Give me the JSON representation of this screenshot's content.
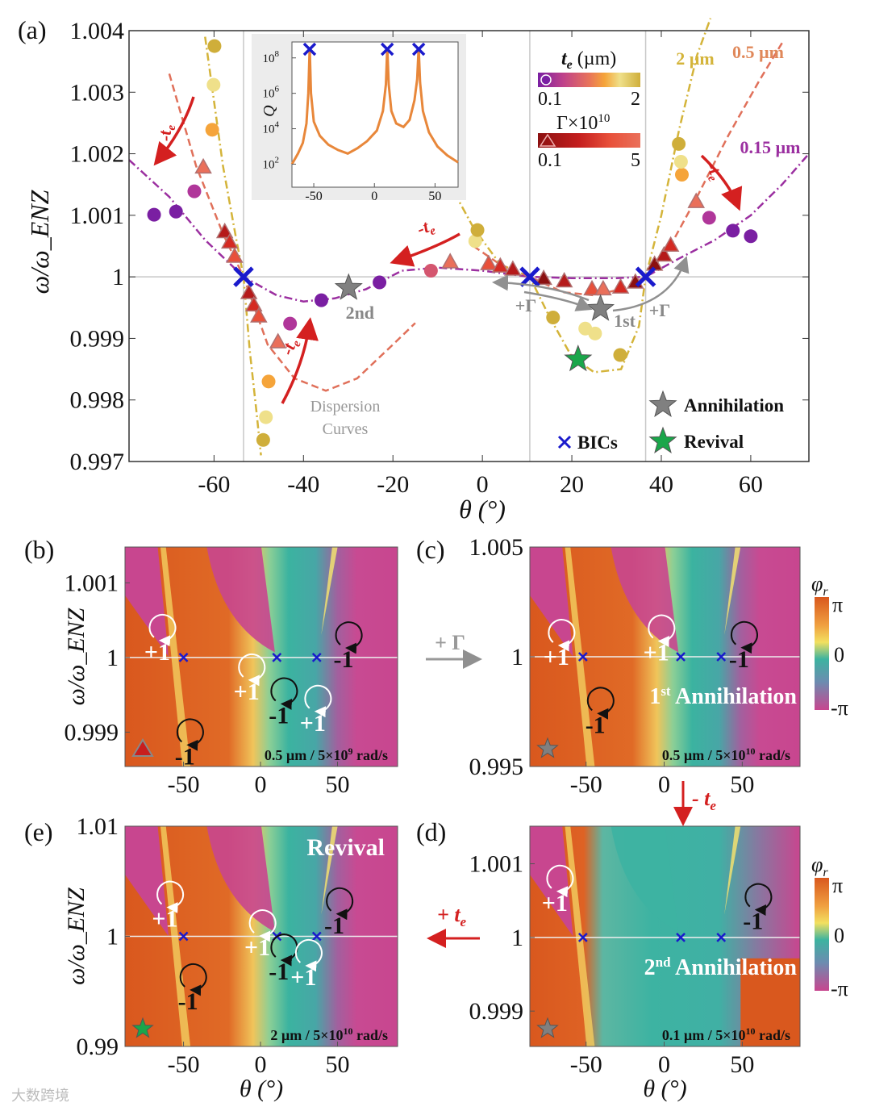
{
  "colors": {
    "te_scale": [
      "#7a1fa2",
      "#b0369a",
      "#d4566f",
      "#e8735a",
      "#f5a43a",
      "#efe08a",
      "#cfae3a"
    ],
    "gamma_scale": [
      "#8b1010",
      "#b51a1a",
      "#d42a22",
      "#e8503a",
      "#ea6f5a"
    ],
    "bic": "#1a1acc",
    "star_gray": "#808080",
    "star_green": "#1aa64a",
    "arrow_red": "#d42020",
    "arrow_gray": "#909090",
    "curve_015": "#9b2fa0",
    "curve_05": "#e0705a",
    "curve_2": "#d4b43a"
  },
  "chart_data": [
    {
      "panel": "(a)",
      "type": "scatter",
      "xlabel": "θ (°)",
      "ylabel": "ω/ω_ENZ",
      "xlim": [
        -79,
        73
      ],
      "ylim": [
        0.997,
        1.004
      ],
      "xticks": [
        "-60",
        "-40",
        "-20",
        "0",
        "20",
        "40",
        "60"
      ],
      "xtick_values": [
        -60,
        -40,
        -20,
        0,
        20,
        40,
        60
      ],
      "yticks": [
        "0.997",
        "0.998",
        "0.999",
        "1",
        "1.001",
        "1.002",
        "1.003",
        "1.004"
      ],
      "ytick_values": [
        0.997,
        0.998,
        0.999,
        1,
        1.001,
        1.002,
        1.003,
        1.004
      ],
      "bic_angles": [
        -53.4,
        10.6,
        36.5
      ],
      "curves": [
        {
          "name": "0.15 µm",
          "color_key": "curve_015",
          "points": [
            [
              -79,
              1.0019
            ],
            [
              -70,
              1.0013
            ],
            [
              -62,
              1.0006
            ],
            [
              -53.4,
              1.0
            ],
            [
              -46,
              0.9997
            ],
            [
              -40,
              0.9996
            ],
            [
              -33,
              0.99965
            ],
            [
              -26,
              0.9998
            ],
            [
              -18,
              1.0001
            ],
            [
              -10,
              1.00015
            ],
            [
              0,
              1.0001
            ],
            [
              10.6,
              1.0
            ],
            [
              20,
              0.99998
            ],
            [
              30,
              0.99998
            ],
            [
              36.5,
              1.0
            ],
            [
              44,
              1.0003
            ],
            [
              52,
              1.0006
            ],
            [
              60,
              1.001
            ],
            [
              67,
              1.0015
            ],
            [
              73,
              1.002
            ]
          ]
        },
        {
          "name": "0.5 µm",
          "color_key": "curve_05",
          "points": [
            [
              -70,
              1.0033
            ],
            [
              -64,
              1.0018
            ],
            [
              -58,
              1.0007
            ],
            [
              -53.4,
              1.0
            ],
            [
              -48,
              0.9989
            ],
            [
              -42,
              0.99835
            ],
            [
              -35,
              0.99815
            ],
            [
              -28,
              0.99835
            ],
            [
              -20,
              0.9989
            ],
            [
              -15,
              0.99925
            ]
          ]
        },
        {
          "name": "0.5 µm right",
          "color_key": "curve_05",
          "points": [
            [
              -2,
              1.0005
            ],
            [
              4,
              1.0002
            ],
            [
              10.6,
              1.0
            ],
            [
              18,
              0.99975
            ],
            [
              25,
              0.9997
            ],
            [
              31,
              0.9998
            ],
            [
              36.5,
              1.0
            ],
            [
              42,
              1.0005
            ],
            [
              48,
              1.0013
            ],
            [
              55,
              1.0023
            ],
            [
              62,
              1.0032
            ],
            [
              67,
              1.0038
            ]
          ]
        },
        {
          "name": "2 µm",
          "color_key": "curve_2",
          "points": [
            [
              -62,
              1.0039
            ],
            [
              -58,
              1.0018
            ],
            [
              -55,
              1.0006
            ],
            [
              -53.4,
              1.0
            ],
            [
              -52,
              0.9988
            ],
            [
              -50.5,
              0.9978
            ],
            [
              -49.5,
              0.9971
            ]
          ]
        },
        {
          "name": "2 µm right",
          "color_key": "curve_2",
          "points": [
            [
              -8,
              1.0016
            ],
            [
              -2,
              1.0008
            ],
            [
              4,
              1.0002
            ],
            [
              10.6,
              1.0
            ],
            [
              15,
              0.99935
            ],
            [
              20,
              0.9987
            ],
            [
              25,
              0.99845
            ],
            [
              31,
              0.9985
            ],
            [
              35,
              0.9992
            ],
            [
              36.5,
              1.0
            ],
            [
              40,
              1.001
            ],
            [
              44,
              1.0024
            ],
            [
              48,
              1.0036
            ],
            [
              51,
              1.0042
            ]
          ]
        }
      ],
      "circles": [
        {
          "theta": -73.4,
          "w": 1.00101,
          "c": 0
        },
        {
          "theta": -68.5,
          "w": 1.00106,
          "c": 0
        },
        {
          "theta": -36,
          "w": 0.99962,
          "c": 0
        },
        {
          "theta": -23,
          "w": 0.99991,
          "c": 0
        },
        {
          "theta": -11.5,
          "w": 1.0001,
          "c": 2
        },
        {
          "theta": 56,
          "w": 1.00075,
          "c": 0
        },
        {
          "theta": 60,
          "w": 1.00066,
          "c": 0
        },
        {
          "theta": -64.4,
          "w": 1.00139,
          "c": 1
        },
        {
          "theta": -43,
          "w": 0.99924,
          "c": 1
        },
        {
          "theta": 50.7,
          "w": 1.00096,
          "c": 1
        },
        {
          "theta": -60.4,
          "w": 1.00239,
          "c": 4
        },
        {
          "theta": -47.8,
          "w": 0.9983,
          "c": 4
        },
        {
          "theta": 44.6,
          "w": 1.00166,
          "c": 4
        },
        {
          "theta": -60.1,
          "w": 1.00312,
          "c": 5
        },
        {
          "theta": -48.4,
          "w": 0.99772,
          "c": 5
        },
        {
          "theta": -1.6,
          "w": 1.00058,
          "c": 5
        },
        {
          "theta": 44.4,
          "w": 1.00187,
          "c": 5
        },
        {
          "theta": 23,
          "w": 0.99916,
          "c": 5
        },
        {
          "theta": 25.2,
          "w": 0.99908,
          "c": 5
        },
        {
          "theta": -59.9,
          "w": 1.00375,
          "c": 6
        },
        {
          "theta": -49,
          "w": 0.99735,
          "c": 6
        },
        {
          "theta": -1.1,
          "w": 1.00076,
          "c": 6
        },
        {
          "theta": 43.9,
          "w": 1.00216,
          "c": 6
        },
        {
          "theta": 15.8,
          "w": 0.99934,
          "c": 6
        },
        {
          "theta": 30.8,
          "w": 0.99873,
          "c": 6
        }
      ],
      "triangles": [
        {
          "theta": -62.4,
          "w": 1.00178,
          "c": 4
        },
        {
          "theta": -57.6,
          "w": 1.00073,
          "c": 1
        },
        {
          "theta": -56.5,
          "w": 1.00056,
          "c": 2
        },
        {
          "theta": -55.4,
          "w": 1.00033,
          "c": 3
        },
        {
          "theta": -52.2,
          "w": 0.99974,
          "c": 1
        },
        {
          "theta": -51.1,
          "w": 0.99954,
          "c": 2
        },
        {
          "theta": -50.0,
          "w": 0.99936,
          "c": 3
        },
        {
          "theta": -45.7,
          "w": 0.99894,
          "c": 4
        },
        {
          "theta": -7.2,
          "w": 1.00024,
          "c": 4
        },
        {
          "theta": 1.4,
          "w": 1.00021,
          "c": 3
        },
        {
          "theta": 4.0,
          "w": 1.00017,
          "c": 2
        },
        {
          "theta": 6.8,
          "w": 1.00012,
          "c": 1
        },
        {
          "theta": 13.7,
          "w": 0.99997,
          "c": 0
        },
        {
          "theta": 18.3,
          "w": 0.99993,
          "c": 1
        },
        {
          "theta": 24.5,
          "w": 0.9998,
          "c": 3
        },
        {
          "theta": 27.0,
          "w": 0.9998,
          "c": 4
        },
        {
          "theta": 30.9,
          "w": 0.99983,
          "c": 2
        },
        {
          "theta": 34.2,
          "w": 0.99991,
          "c": 0
        },
        {
          "theta": 38.5,
          "w": 1.0002,
          "c": 0
        },
        {
          "theta": 40.6,
          "w": 1.00035,
          "c": 1
        },
        {
          "theta": 42.1,
          "w": 1.00051,
          "c": 2
        },
        {
          "theta": 47.8,
          "w": 1.00122,
          "c": 4
        }
      ],
      "stars": [
        {
          "theta": -29.9,
          "w": 0.99982,
          "color_key": "star_gray",
          "label": "2nd"
        },
        {
          "theta": 26.4,
          "w": 0.99948,
          "color_key": "star_gray",
          "label": "1st"
        },
        {
          "theta": 21.4,
          "w": 0.99866,
          "color_key": "star_green",
          "label": ""
        }
      ],
      "annotations": {
        "curve_2um": "2 µm",
        "curve_05um": "0.5 µm",
        "curve_015um": "0.15 µm",
        "minus_te": "-t",
        "te_sub": "e",
        "plus_gamma": "+Γ",
        "dispersion_1": "Dispersion",
        "dispersion_2": "Curves"
      },
      "legend": {
        "te_title": "t",
        "te_sub": "e",
        "te_unit": " (µm)",
        "te_min": "0.1",
        "te_max": "2",
        "gamma_title": "Γ×10",
        "gamma_exp": "10",
        "gamma_min": "0.1",
        "gamma_max": "5",
        "bics": "BICs",
        "annihilation": "Annihilation",
        "revival": "Revival"
      },
      "inset": {
        "type": "line",
        "ylabel": "Q",
        "xlim": [
          -68,
          69
        ],
        "ylim_log10": [
          0.7,
          8.9
        ],
        "xticks": [
          "-50",
          "0",
          "50"
        ],
        "xtick_values": [
          -50,
          0,
          50
        ],
        "yticks": [
          "10",
          "10",
          "10",
          "10"
        ],
        "ytick_exps": [
          "2",
          "4",
          "6",
          "8"
        ],
        "ytick_log_values": [
          2,
          4,
          6,
          8
        ],
        "log10Q": [
          [
            -68,
            2.0
          ],
          [
            -63,
            2.6
          ],
          [
            -59,
            3.2
          ],
          [
            -56,
            4.3
          ],
          [
            -54.5,
            6.0
          ],
          [
            -53.4,
            8.6
          ],
          [
            -52.3,
            6.0
          ],
          [
            -50,
            4.4
          ],
          [
            -45,
            3.6
          ],
          [
            -38,
            3.1
          ],
          [
            -30,
            2.8
          ],
          [
            -22,
            2.6
          ],
          [
            -14,
            2.9
          ],
          [
            -6,
            3.3
          ],
          [
            2,
            3.9
          ],
          [
            7,
            5.0
          ],
          [
            9.5,
            6.5
          ],
          [
            10.6,
            8.6
          ],
          [
            11.8,
            6.5
          ],
          [
            14,
            5.0
          ],
          [
            18,
            4.3
          ],
          [
            24,
            4.1
          ],
          [
            29,
            4.5
          ],
          [
            33,
            5.6
          ],
          [
            35.3,
            6.8
          ],
          [
            36.5,
            8.6
          ],
          [
            37.7,
            6.6
          ],
          [
            40,
            5.0
          ],
          [
            45,
            3.8
          ],
          [
            52,
            3.0
          ],
          [
            60,
            2.5
          ],
          [
            69,
            2.1
          ]
        ]
      }
    },
    {
      "panel": "(b)",
      "type": "heatmap",
      "xlim": [
        -88,
        89
      ],
      "ylim": [
        0.99854,
        1.00148
      ],
      "xticks": [
        "-50",
        "0",
        "50"
      ],
      "xtick_values": [
        -50,
        0,
        50
      ],
      "yticks": [
        "0.999",
        "1",
        "1.001"
      ],
      "ytick_values": [
        0.999,
        1,
        1.001
      ],
      "ylabel": "ω/ω_ENZ",
      "caption": "0.5 µm / 5×10",
      "caption_exp": "9",
      "caption_unit": " rad/s",
      "marker": "triangle",
      "bics": [
        -50,
        10.6,
        36.5
      ],
      "charges": [
        {
          "label": "+1",
          "theta": -65,
          "w": 1.0004,
          "sign": "plus"
        },
        {
          "label": "+1",
          "theta": -7,
          "w": 0.99987,
          "sign": "plus"
        },
        {
          "label": "-1",
          "theta": 14,
          "w": 0.99955,
          "sign": "minus"
        },
        {
          "label": "+1",
          "theta": 36,
          "w": 0.99945,
          "sign": "plus"
        },
        {
          "label": "-1",
          "theta": 56,
          "w": 1.0003,
          "sign": "minus"
        },
        {
          "label": "-1",
          "theta": -47,
          "w": 0.999,
          "sign": "minus"
        }
      ]
    },
    {
      "panel": "(c)",
      "type": "heatmap",
      "xlim": [
        -86,
        87
      ],
      "ylim": [
        0.995,
        1.005
      ],
      "xticks": [
        "-50",
        "0",
        "50"
      ],
      "xtick_values": [
        -50,
        0,
        50
      ],
      "yticks": [
        "0.995",
        "1",
        "1.005"
      ],
      "ytick_values": [
        0.995,
        1,
        1.005
      ],
      "caption": "0.5 µm / 5×10",
      "caption_exp": "10",
      "caption_unit": " rad/s",
      "marker": "star",
      "bics": [
        -52,
        10.6,
        36.5
      ],
      "label_text": "Annihilation",
      "label_prefix": "1",
      "label_sup": "st",
      "colorbar": {
        "title": "φ",
        "sub": "r",
        "max": "π",
        "mid": "0",
        "min": "-π"
      },
      "charges": [
        {
          "label": "+1",
          "theta": -67,
          "w": 1.0011,
          "sign": "plus"
        },
        {
          "label": "+1",
          "theta": -3,
          "w": 1.0013,
          "sign": "plus"
        },
        {
          "label": "-1",
          "theta": 50,
          "w": 1.001,
          "sign": "minus"
        },
        {
          "label": "-1",
          "theta": -42,
          "w": 0.998,
          "sign": "minus"
        }
      ]
    },
    {
      "panel": "(d)",
      "type": "heatmap",
      "xlim": [
        -86,
        87
      ],
      "ylim": [
        0.99852,
        1.00151
      ],
      "xticks": [
        "-50",
        "0",
        "50"
      ],
      "xtick_values": [
        -50,
        0,
        50
      ],
      "yticks": [
        "0.999",
        "1",
        "1.001"
      ],
      "ytick_values": [
        0.999,
        1,
        1.001
      ],
      "xlabel": "θ (°)",
      "caption": "0.1 µm / 5×10",
      "caption_exp": "10",
      "caption_unit": " rad/s",
      "marker": "star",
      "bics": [
        -52,
        10.6,
        36.5
      ],
      "label_text": "Annihilation",
      "label_prefix": "2",
      "label_sup": "nd",
      "colorbar": {
        "title": "φ",
        "sub": "r",
        "max": "π",
        "mid": "0",
        "min": "-π"
      },
      "charges": [
        {
          "label": "+1",
          "theta": -68,
          "w": 1.0008,
          "sign": "plus"
        },
        {
          "label": "-1",
          "theta": 59,
          "w": 1.00055,
          "sign": "minus"
        }
      ]
    },
    {
      "panel": "(e)",
      "type": "heatmap",
      "xlim": [
        -88,
        89
      ],
      "ylim": [
        0.99,
        1.01
      ],
      "xticks": [
        "-50",
        "0",
        "50"
      ],
      "xtick_values": [
        -50,
        0,
        50
      ],
      "yticks": [
        "0.99",
        "1",
        "1.01"
      ],
      "ytick_values": [
        0.99,
        1,
        1.01
      ],
      "ylabel": "ω/ω_ENZ",
      "xlabel": "θ (°)",
      "caption": "2 µm / 5×10",
      "caption_exp": "10",
      "caption_unit": " rad/s",
      "marker": "star_green",
      "bics": [
        -50,
        10.6,
        36.5
      ],
      "label_text": "Revival",
      "charges": [
        {
          "label": "+1",
          "theta": -60,
          "w": 1.0038,
          "sign": "plus"
        },
        {
          "label": "+1",
          "theta": 0,
          "w": 1.0012,
          "sign": "plus"
        },
        {
          "label": "-1",
          "theta": 14,
          "w": 0.999,
          "sign": "minus"
        },
        {
          "label": "+1",
          "theta": 30,
          "w": 0.9985,
          "sign": "plus"
        },
        {
          "label": "-1",
          "theta": 50,
          "w": 1.0032,
          "sign": "minus"
        },
        {
          "label": "-1",
          "theta": -45,
          "w": 0.9963,
          "sign": "minus"
        }
      ]
    }
  ],
  "transitions": {
    "plus_gamma": "+ Γ",
    "minus_te": "- t",
    "plus_te": "+ t",
    "sub": "e"
  },
  "watermark": "大数跨境"
}
